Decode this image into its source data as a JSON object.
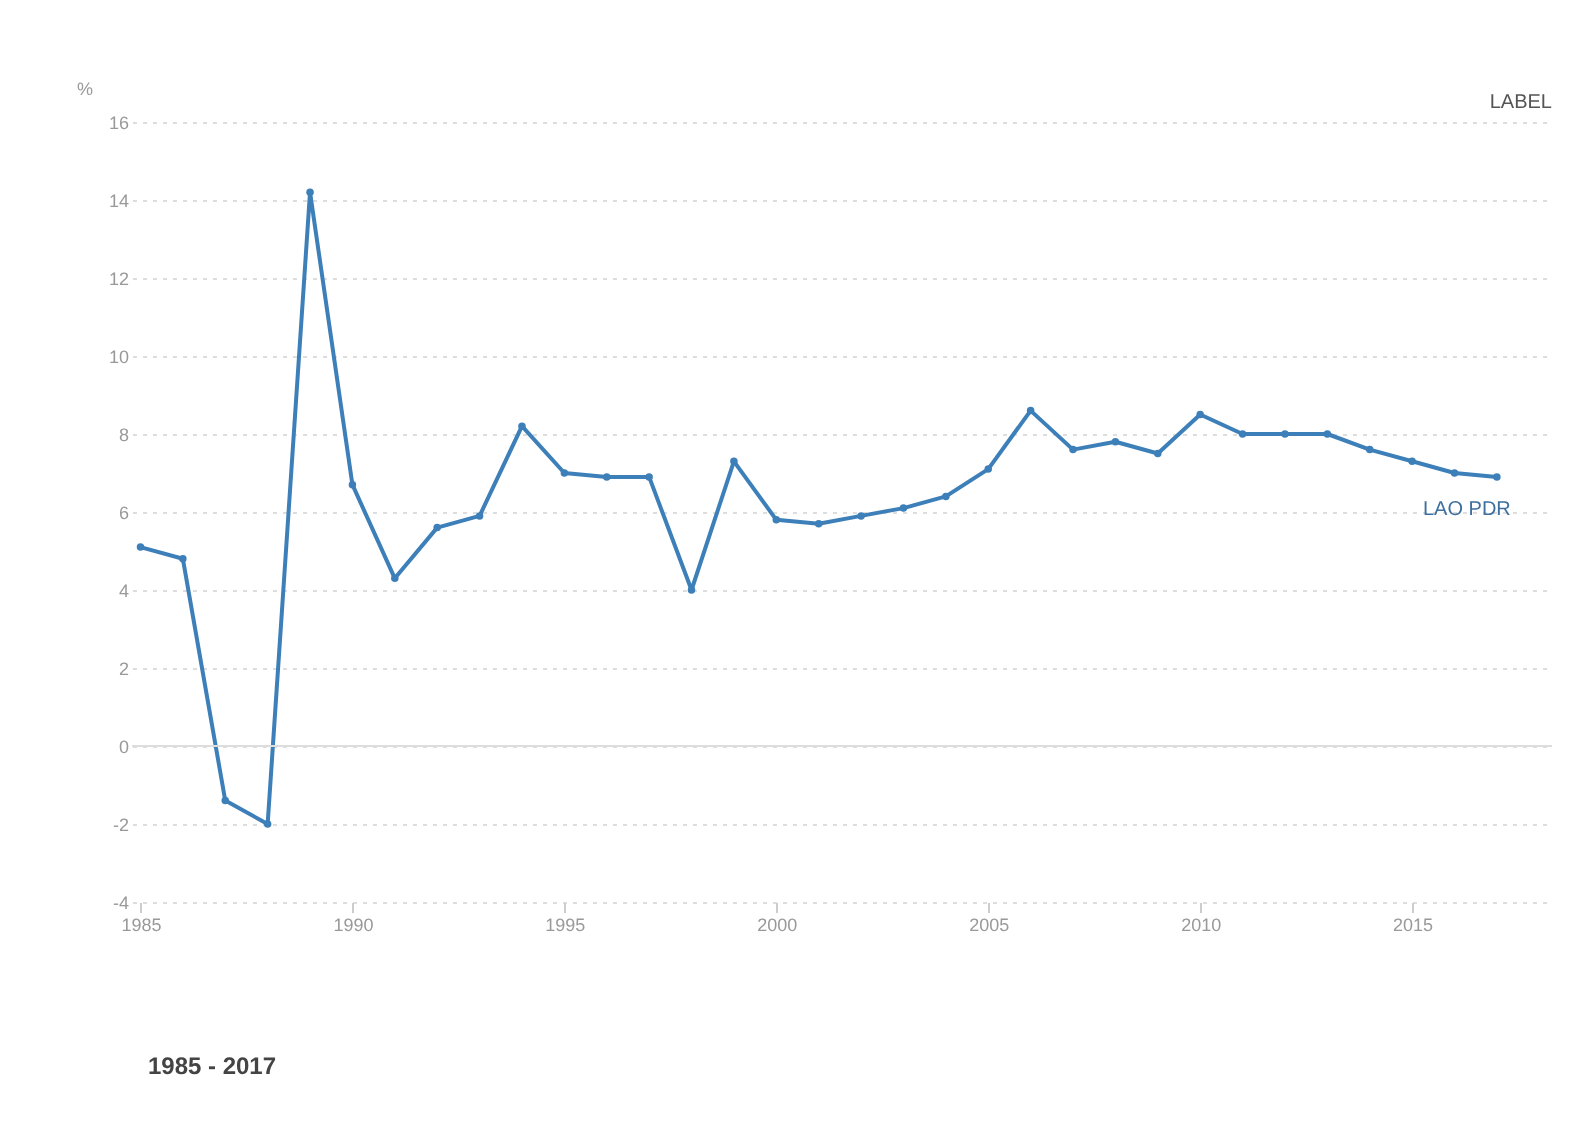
{
  "chart_data": {
    "type": "line",
    "ylabel": "%",
    "x": [
      1985,
      1986,
      1987,
      1988,
      1989,
      1990,
      1991,
      1992,
      1993,
      1994,
      1995,
      1996,
      1997,
      1998,
      1999,
      2000,
      2001,
      2002,
      2003,
      2004,
      2005,
      2006,
      2007,
      2008,
      2009,
      2010,
      2011,
      2012,
      2013,
      2014,
      2015,
      2016,
      2017
    ],
    "series": [
      {
        "name": "LAO PDR",
        "color": "#3d7fb8",
        "values": [
          5.1,
          4.8,
          -1.4,
          -2.0,
          14.2,
          6.7,
          4.3,
          5.6,
          5.9,
          8.2,
          7.0,
          6.9,
          6.9,
          4.0,
          7.3,
          5.8,
          5.7,
          5.9,
          6.1,
          6.4,
          7.1,
          8.6,
          7.6,
          7.8,
          7.5,
          8.5,
          8.0,
          8.0,
          8.0,
          7.6,
          7.3,
          7.0,
          6.9
        ]
      }
    ],
    "xlim": [
      1984.8,
      2018.3
    ],
    "xticks": [
      1985,
      1990,
      1995,
      2000,
      2005,
      2010,
      2015
    ],
    "ylim": [
      -4,
      16
    ],
    "yticks": [
      -4,
      -2,
      0,
      2,
      4,
      6,
      8,
      10,
      12,
      14,
      16
    ],
    "grid": "y",
    "marker": "circle",
    "line_style": "solid",
    "legend": "top right",
    "annotations": [
      "LABEL",
      "1985 - 2017"
    ]
  }
}
